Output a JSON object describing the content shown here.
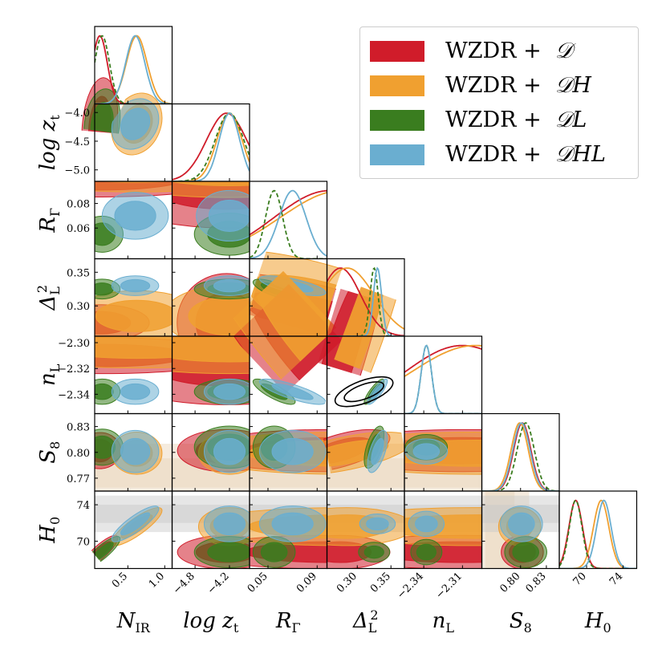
{
  "chart_data": {
    "type": "corner",
    "title": "",
    "legend": {
      "position": "top-right",
      "entries": [
        {
          "prefix": "WZDR +",
          "dataset": "𝒟",
          "color": "#d01c2a"
        },
        {
          "prefix": "WZDR +",
          "dataset": "𝒟H",
          "color": "#f0a030"
        },
        {
          "prefix": "WZDR +",
          "dataset": "𝒟L",
          "color": "#3a7d1f"
        },
        {
          "prefix": "WZDR +",
          "dataset": "𝒟HL",
          "color": "#6aaed0"
        }
      ]
    },
    "parameters": [
      {
        "name": "N_IR",
        "label": "N",
        "sub": "IR",
        "range": [
          0.05,
          1.1
        ],
        "ticks": [
          0.5,
          1.0
        ],
        "tick_labels": [
          "0.5",
          "1.0"
        ]
      },
      {
        "name": "log z_t",
        "label": "log z",
        "sub": "t",
        "range": [
          -5.2,
          -3.85
        ],
        "ticks": [
          -4.8,
          -4.2
        ],
        "tick_labels": [
          "−4.8",
          "−4.2"
        ],
        "y_ticks": [
          -4.0,
          -4.5,
          -5.0
        ],
        "y_tick_labels": [
          "−4.0",
          "−4.5",
          "−5.0"
        ]
      },
      {
        "name": "R_Gamma",
        "label": "R",
        "sub": "Γ",
        "range": [
          0.035,
          0.098
        ],
        "ticks": [
          0.05,
          0.09
        ],
        "tick_labels": [
          "0.05",
          "0.09"
        ],
        "y_ticks": [
          0.08,
          0.06
        ],
        "y_tick_labels": [
          "0.08",
          "0.06"
        ]
      },
      {
        "name": "Delta_L^2",
        "label": "Δ",
        "sub": "L",
        "sup": "2",
        "range": [
          0.255,
          0.37
        ],
        "ticks": [
          0.3,
          0.35
        ],
        "tick_labels": [
          "0.30",
          "0.35"
        ],
        "y_ticks": [
          0.35,
          0.3
        ],
        "y_tick_labels": [
          "0.35",
          "0.30"
        ]
      },
      {
        "name": "n_L",
        "label": "n",
        "sub": "L",
        "range": [
          -2.355,
          -2.295
        ],
        "ticks": [
          -2.34,
          -2.31
        ],
        "tick_labels": [
          "−2.34",
          "−2.31"
        ],
        "y_ticks": [
          -2.3,
          -2.32,
          -2.34
        ],
        "y_tick_labels": [
          "−2.30",
          "−2.32",
          "−2.34"
        ]
      },
      {
        "name": "S_8",
        "label": "S",
        "sub": "8",
        "range": [
          0.755,
          0.845
        ],
        "ticks": [
          0.8,
          0.83
        ],
        "tick_labels": [
          "0.80",
          "0.83"
        ],
        "y_ticks": [
          0.83,
          0.8,
          0.77
        ],
        "y_tick_labels": [
          "0.83",
          "0.80",
          "0.77"
        ]
      },
      {
        "name": "H_0",
        "label": "H",
        "sub": "0",
        "range": [
          67.0,
          75.5
        ],
        "ticks": [
          70,
          74
        ],
        "tick_labels": [
          "70",
          "74"
        ],
        "y_ticks": [
          74,
          70
        ],
        "y_tick_labels": [
          "74",
          "70"
        ]
      }
    ],
    "series": [
      {
        "name": "WZDR + D",
        "color": "#d01c2a",
        "style": "solid",
        "means": {
          "N_IR": 0.12,
          "log z_t": -4.25,
          "R_Gamma": 0.1,
          "Delta_L^2": 0.275,
          "n_L": -2.31,
          "S_8": 0.802,
          "H_0": 68.8
        },
        "sigmas": {
          "N_IR": 0.1,
          "log z_t": 0.35,
          "R_Gamma": 0.045,
          "Delta_L^2": 0.03,
          "n_L": 0.045,
          "S_8": 0.01,
          "H_0": 0.75
        }
      },
      {
        "name": "WZDR + DH",
        "color": "#f0a030",
        "style": "solid",
        "means": {
          "N_IR": 0.62,
          "log z_t": -4.2,
          "R_Gamma": 0.11,
          "Delta_L^2": 0.285,
          "n_L": -2.3,
          "S_8": 0.799,
          "H_0": 71.6
        },
        "sigmas": {
          "N_IR": 0.14,
          "log z_t": 0.22,
          "R_Gamma": 0.05,
          "Delta_L^2": 0.04,
          "n_L": 0.05,
          "S_8": 0.01,
          "H_0": 0.85
        }
      },
      {
        "name": "WZDR + DL",
        "color": "#3a7d1f",
        "style": "dashed",
        "means": {
          "N_IR": 0.15,
          "log z_t": -4.2,
          "R_Gamma": 0.055,
          "Delta_L^2": 0.325,
          "n_L": -2.338,
          "S_8": 0.806,
          "H_0": 68.8
        },
        "sigmas": {
          "N_IR": 0.1,
          "log z_t": 0.25,
          "R_Gamma": 0.007,
          "Delta_L^2": 0.006,
          "n_L": 0.004,
          "S_8": 0.01,
          "H_0": 0.7
        }
      },
      {
        "name": "WZDR + DHL",
        "color": "#6aaed0",
        "style": "solid",
        "means": {
          "N_IR": 0.6,
          "log z_t": -4.2,
          "R_Gamma": 0.07,
          "Delta_L^2": 0.33,
          "n_L": -2.338,
          "S_8": 0.801,
          "H_0": 71.9
        },
        "sigmas": {
          "N_IR": 0.13,
          "log z_t": 0.18,
          "R_Gamma": 0.011,
          "Delta_L^2": 0.006,
          "n_L": 0.004,
          "S_8": 0.01,
          "H_0": 0.8
        }
      }
    ],
    "external_constraints": {
      "S_8": {
        "mean": 0.776,
        "sigma": 0.017,
        "color": "#e8d2b6"
      },
      "H_0": {
        "mean": 73.0,
        "sigma": 1.0,
        "color": "#c8c8c8"
      },
      "Delta_L^2_n_L_ellipse": {
        "center": [
          0.31,
          -2.338
        ],
        "color": "#000000"
      }
    }
  }
}
